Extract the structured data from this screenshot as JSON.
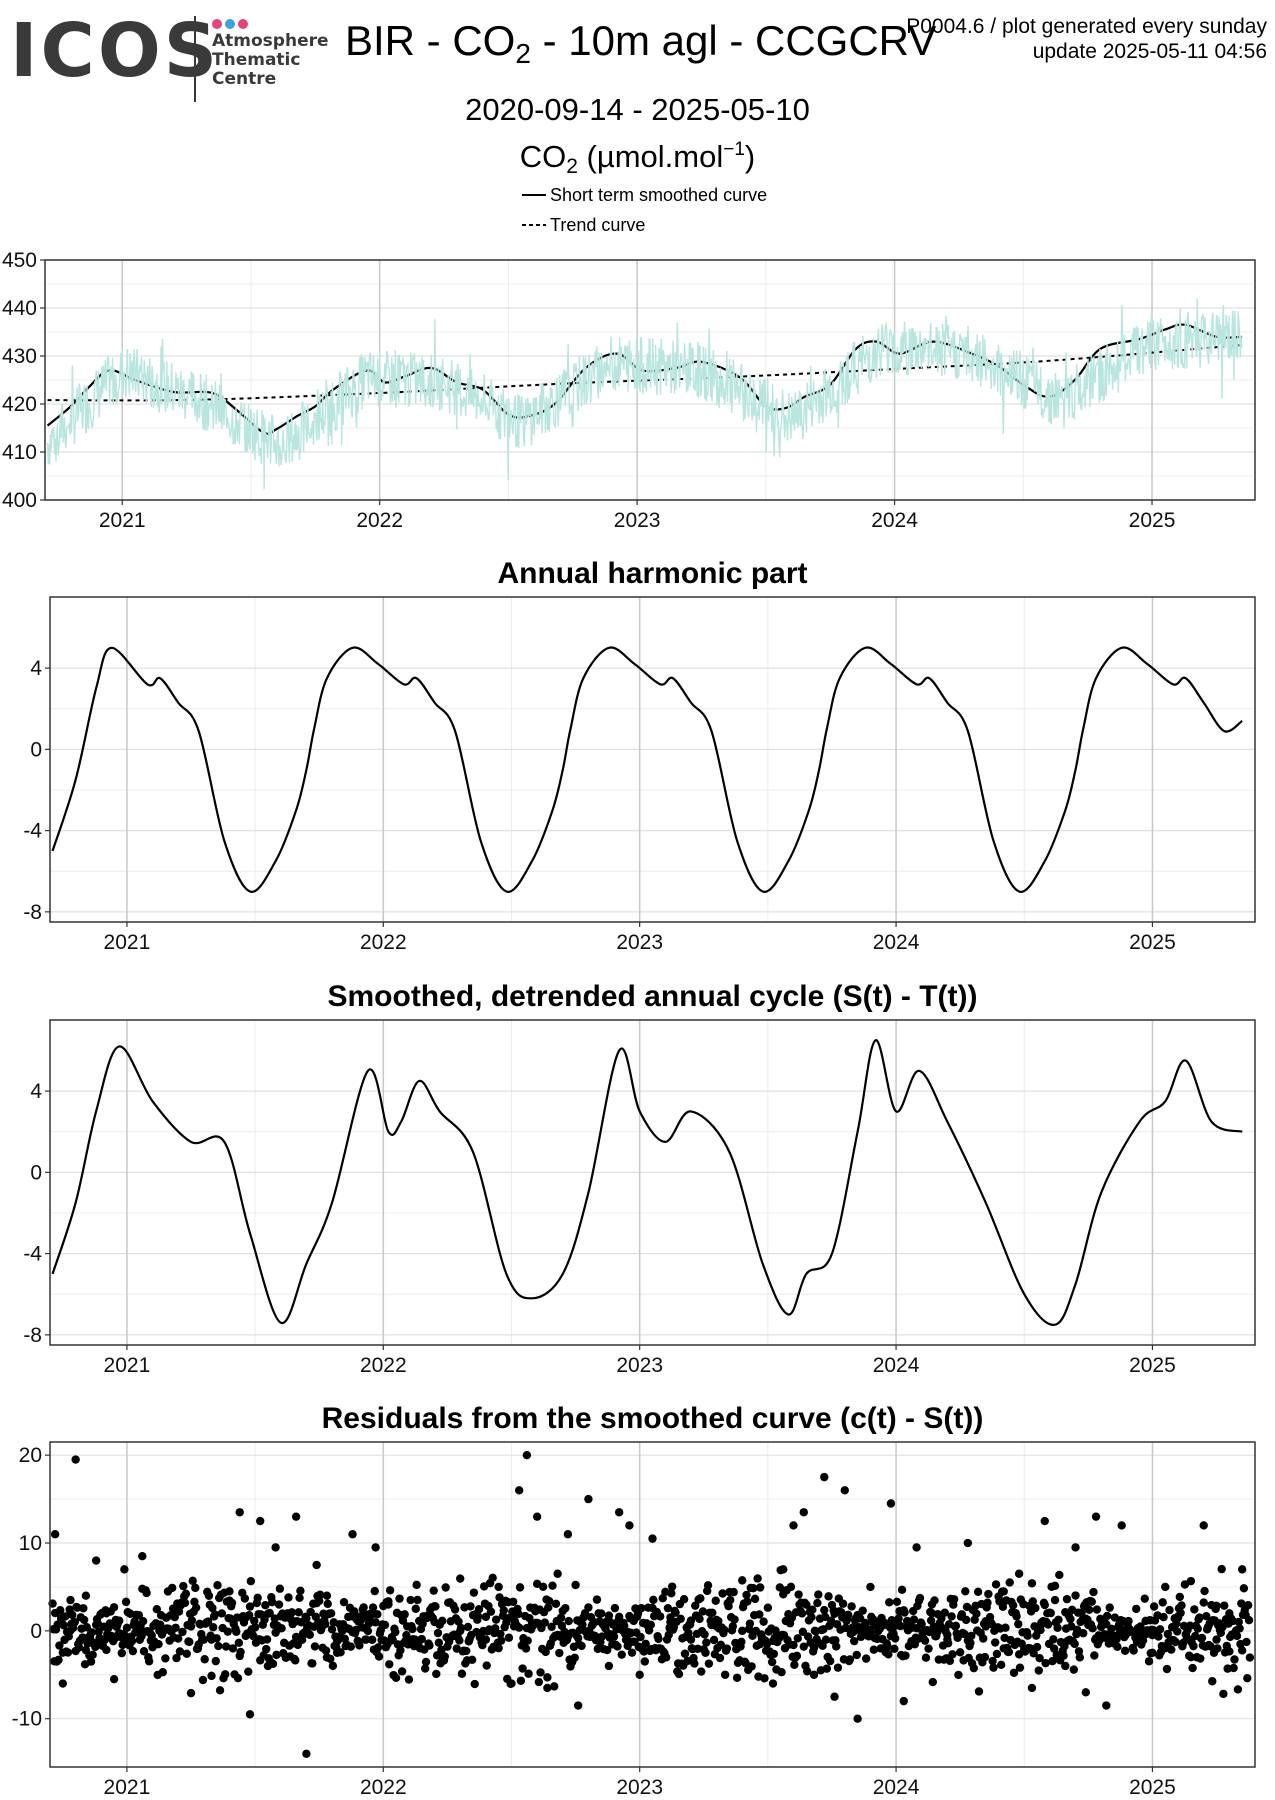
{
  "header": {
    "logo_word": "ICOS",
    "logo_sub": [
      "Atmosphere",
      "Thematic",
      "Centre"
    ],
    "logo_dot_colors": [
      "#e8417c",
      "#3aa3e8",
      "#e8417c"
    ],
    "title_prefix": "BIR - CO",
    "title_sub": "2",
    "title_suffix": " - 10m agl - CCGCRV",
    "meta_line1": "P0004.6 / plot generated every sunday",
    "meta_line2": "update  2025-05-11 04:56",
    "date_range": "2020-09-14 - 2025-05-10",
    "unit_prefix": "CO",
    "unit_sub": "2",
    "unit_middle": " (µmol.mol",
    "unit_sup": "−1",
    "unit_suffix": ")",
    "legend": [
      {
        "label": "Short term smoothed curve",
        "style": "solid"
      },
      {
        "label": "Trend curve",
        "style": "dashed"
      }
    ]
  },
  "colors": {
    "raw": "#b8e6df",
    "line": "#000000",
    "grid_major": "#c8c8c8",
    "grid_minor": "#ececec"
  },
  "chart_data": [
    {
      "type": "line",
      "title": "",
      "ylabel": "",
      "xlim": [
        2020.7,
        2025.4
      ],
      "ylim": [
        400,
        450
      ],
      "yticks": [
        400,
        410,
        420,
        430,
        440,
        450
      ],
      "xticks": [
        2021,
        2022,
        2023,
        2024,
        2025
      ],
      "xtick_labels": [
        "2021",
        "2022",
        "2023",
        "2024",
        "2025"
      ],
      "series": [
        {
          "name": "Short term smoothed curve",
          "style": "solid",
          "x": [
            2020.71,
            2020.8,
            2020.87,
            2020.95,
            2021.05,
            2021.2,
            2021.35,
            2021.45,
            2021.55,
            2021.6,
            2021.68,
            2021.75,
            2021.82,
            2021.95,
            2022.02,
            2022.1,
            2022.2,
            2022.3,
            2022.4,
            2022.5,
            2022.58,
            2022.68,
            2022.8,
            2022.92,
            2023.02,
            2023.15,
            2023.25,
            2023.4,
            2023.5,
            2023.58,
            2023.65,
            2023.75,
            2023.85,
            2023.93,
            2024.02,
            2024.15,
            2024.3,
            2024.4,
            2024.5,
            2024.6,
            2024.7,
            2024.8,
            2024.95,
            2025.05,
            2025.13,
            2025.25,
            2025.35
          ],
          "y": [
            415.5,
            419.5,
            423.5,
            427.0,
            425.0,
            422.5,
            422.3,
            418.5,
            414.0,
            414.8,
            417.5,
            419.5,
            423.0,
            427.0,
            424.5,
            425.8,
            427.5,
            424.5,
            423.0,
            417.8,
            417.5,
            420.0,
            427.5,
            430.5,
            427.0,
            427.5,
            428.8,
            425.5,
            419.5,
            419.2,
            421.5,
            424.0,
            431.5,
            433.0,
            430.5,
            433.0,
            430.5,
            428.0,
            424.0,
            421.5,
            425.0,
            431.5,
            433.5,
            435.5,
            436.5,
            434.0,
            434.0
          ]
        },
        {
          "name": "Trend curve",
          "style": "dashed",
          "x": [
            2020.71,
            2021.3,
            2022.0,
            2022.7,
            2023.4,
            2024.0,
            2024.6,
            2025.35
          ],
          "y": [
            420.8,
            420.9,
            422.3,
            424.2,
            425.7,
            427.3,
            429.0,
            432.3
          ]
        },
        {
          "name": "",
          "style": "raw",
          "kind": "daily_raw_band",
          "x": [
            2020.71,
            2021.0,
            2021.3,
            2021.62,
            2021.95,
            2022.25,
            2022.55,
            2022.9,
            2023.25,
            2023.6,
            2023.95,
            2024.3,
            2024.65,
            2025.0,
            2025.35
          ],
          "y": [
            412.0,
            427.0,
            421.0,
            411.0,
            425.5,
            424.5,
            416.0,
            428.5,
            427.0,
            416.5,
            432.0,
            430.5,
            420.5,
            433.0,
            433.5
          ],
          "spread": 6
        }
      ]
    },
    {
      "type": "line",
      "title": "Annual harmonic part",
      "xlim": [
        2020.7,
        2025.4
      ],
      "ylim": [
        -8.5,
        7.5
      ],
      "yticks": [
        -8,
        -4,
        0,
        4
      ],
      "ytick_labels": [
        "-8",
        "-4",
        "0",
        "4"
      ],
      "xticks": [
        2021,
        2022,
        2023,
        2024,
        2025
      ],
      "xtick_labels": [
        "2021",
        "2022",
        "2023",
        "2024",
        "2025"
      ],
      "cycle": {
        "phase": [
          0.0,
          0.05,
          0.12,
          0.2,
          0.3,
          0.4,
          0.5,
          0.58,
          0.62,
          0.65,
          0.7,
          0.8,
          0.9,
          1.0
        ],
        "value": [
          3.2,
          3.5,
          2.3,
          0.9,
          -4.5,
          -7.0,
          -5.5,
          -3.0,
          -1.0,
          1.0,
          3.5,
          5.0,
          4.2,
          3.2
        ],
        "period_start": 2021.08
      },
      "series": [
        {
          "name": "",
          "style": "solid",
          "x": [
            2020.71,
            2020.8,
            2020.88,
            2020.94,
            2021.08,
            2021.13,
            2021.2,
            2021.28,
            2021.38,
            2021.48,
            2021.58,
            2021.66,
            2021.7,
            2021.73,
            2021.78,
            2021.88,
            2021.98,
            2022.08,
            2022.13,
            2022.2,
            2022.28,
            2022.38,
            2022.48,
            2022.58,
            2022.66,
            2022.7,
            2022.73,
            2022.78,
            2022.88,
            2022.98,
            2023.08,
            2023.13,
            2023.2,
            2023.28,
            2023.38,
            2023.48,
            2023.58,
            2023.66,
            2023.7,
            2023.73,
            2023.78,
            2023.88,
            2023.98,
            2024.08,
            2024.13,
            2024.2,
            2024.28,
            2024.38,
            2024.48,
            2024.58,
            2024.66,
            2024.7,
            2024.73,
            2024.78,
            2024.88,
            2024.98,
            2025.08,
            2025.13,
            2025.2,
            2025.28,
            2025.35
          ],
          "y": [
            -5.0,
            -1.5,
            3.0,
            5.0,
            3.2,
            3.5,
            2.3,
            0.9,
            -4.5,
            -7.0,
            -5.5,
            -3.0,
            -1.0,
            1.0,
            3.5,
            5.0,
            4.2,
            3.2,
            3.5,
            2.3,
            0.9,
            -4.5,
            -7.0,
            -5.5,
            -3.0,
            -1.0,
            1.0,
            3.5,
            5.0,
            4.2,
            3.2,
            3.5,
            2.3,
            0.9,
            -4.5,
            -7.0,
            -5.5,
            -3.0,
            -1.0,
            1.0,
            3.5,
            5.0,
            4.2,
            3.2,
            3.5,
            2.3,
            0.9,
            -4.5,
            -7.0,
            -5.5,
            -3.0,
            -1.0,
            1.0,
            3.5,
            5.0,
            4.2,
            3.2,
            3.5,
            2.3,
            0.9,
            1.4
          ]
        }
      ]
    },
    {
      "type": "line",
      "title": "Smoothed, detrended annual cycle (S(t) - T(t))",
      "xlim": [
        2020.7,
        2025.4
      ],
      "ylim": [
        -8.5,
        7.5
      ],
      "yticks": [
        -8,
        -4,
        0,
        4
      ],
      "ytick_labels": [
        "-8",
        "-4",
        "0",
        "4"
      ],
      "xticks": [
        2021,
        2022,
        2023,
        2024,
        2025
      ],
      "xtick_labels": [
        "2021",
        "2022",
        "2023",
        "2024",
        "2025"
      ],
      "series": [
        {
          "name": "",
          "style": "solid",
          "x": [
            2020.71,
            2020.8,
            2020.88,
            2020.97,
            2021.1,
            2021.25,
            2021.38,
            2021.48,
            2021.6,
            2021.7,
            2021.8,
            2021.94,
            2022.02,
            2022.07,
            2022.14,
            2022.22,
            2022.35,
            2022.48,
            2022.58,
            2022.7,
            2022.8,
            2022.92,
            2023.0,
            2023.1,
            2023.2,
            2023.35,
            2023.48,
            2023.58,
            2023.65,
            2023.75,
            2023.85,
            2023.92,
            2024.0,
            2024.09,
            2024.2,
            2024.35,
            2024.5,
            2024.62,
            2024.7,
            2024.8,
            2024.95,
            2025.05,
            2025.13,
            2025.23,
            2025.35
          ],
          "y": [
            -5.0,
            -1.5,
            3.0,
            6.2,
            3.5,
            1.5,
            1.5,
            -3.0,
            -7.4,
            -4.5,
            -1.5,
            5.0,
            2.0,
            2.5,
            4.5,
            3.0,
            1.0,
            -5.0,
            -6.2,
            -5.0,
            -1.0,
            6.0,
            3.0,
            1.5,
            3.0,
            1.0,
            -4.5,
            -7.0,
            -5.0,
            -4.0,
            2.0,
            6.5,
            3.0,
            5.0,
            2.5,
            -1.5,
            -6.0,
            -7.5,
            -5.5,
            -1.0,
            2.5,
            3.5,
            5.5,
            2.5,
            2.0
          ]
        }
      ]
    },
    {
      "type": "scatter",
      "title": "Residuals from the smoothed curve (c(t) - S(t))",
      "xlim": [
        2020.7,
        2025.4
      ],
      "ylim": [
        -15.5,
        21.5
      ],
      "yticks": [
        -10,
        0,
        10,
        20
      ],
      "ytick_labels": [
        "-10",
        "0",
        "10",
        "20"
      ],
      "xticks": [
        2021,
        2022,
        2023,
        2024,
        2025
      ],
      "xtick_labels": [
        "2021",
        "2022",
        "2023",
        "2024",
        "2025"
      ],
      "series": [
        {
          "name": "",
          "style": "points",
          "x": [
            2020.72,
            2020.75,
            2020.78,
            2020.8,
            2020.84,
            2020.86,
            2020.88,
            2020.92,
            2020.95,
            2020.99,
            2021.03,
            2021.06,
            2021.12,
            2021.18,
            2021.25,
            2021.33,
            2021.4,
            2021.44,
            2021.48,
            2021.52,
            2021.55,
            2021.58,
            2021.62,
            2021.66,
            2021.7,
            2021.74,
            2021.78,
            2021.82,
            2021.88,
            2021.93,
            2021.97,
            2022.02,
            2022.1,
            2022.2,
            2022.3,
            2022.4,
            2022.45,
            2022.5,
            2022.53,
            2022.56,
            2022.6,
            2022.64,
            2022.68,
            2022.72,
            2022.76,
            2022.8,
            2022.84,
            2022.88,
            2022.92,
            2022.96,
            2023.0,
            2023.05,
            2023.12,
            2023.2,
            2023.3,
            2023.4,
            2023.47,
            2023.52,
            2023.56,
            2023.6,
            2023.64,
            2023.68,
            2023.72,
            2023.76,
            2023.8,
            2023.85,
            2023.9,
            2023.94,
            2023.98,
            2024.03,
            2024.08,
            2024.14,
            2024.2,
            2024.28,
            2024.35,
            2024.42,
            2024.48,
            2024.53,
            2024.58,
            2024.62,
            2024.66,
            2024.7,
            2024.74,
            2024.78,
            2024.82,
            2024.88,
            2024.94,
            2025.0,
            2025.05,
            2025.1,
            2025.15,
            2025.2,
            2025.25,
            2025.3,
            2025.35
          ],
          "y": [
            11.0,
            -6.0,
            3.5,
            19.5,
            4.0,
            -3.5,
            8.0,
            2.0,
            -5.5,
            7.0,
            1.0,
            8.5,
            -1.5,
            2.0,
            0.5,
            -1.0,
            4.5,
            13.5,
            -9.5,
            12.5,
            -4.0,
            9.5,
            -3.0,
            13.0,
            -14.0,
            7.5,
            4.0,
            -2.5,
            11.0,
            -1.0,
            9.5,
            3.0,
            -1.5,
            1.0,
            0.0,
            -1.0,
            5.0,
            -6.0,
            16.0,
            20.0,
            13.0,
            -6.5,
            6.5,
            11.0,
            -8.5,
            15.0,
            2.0,
            -4.0,
            13.5,
            12.0,
            -5.0,
            10.5,
            1.0,
            -1.0,
            0.5,
            0.0,
            -1.5,
            -6.0,
            7.0,
            12.0,
            13.5,
            -5.0,
            17.5,
            -7.5,
            16.0,
            -10.0,
            5.0,
            -2.0,
            14.5,
            -8.0,
            9.5,
            2.0,
            -1.0,
            10.0,
            0.5,
            -2.0,
            6.5,
            -6.5,
            12.5,
            3.5,
            -4.0,
            9.5,
            -7.0,
            13.0,
            -8.5,
            12.0,
            0.0,
            -2.5,
            5.0,
            1.5,
            -3.0,
            12.0,
            -1.0,
            2.0,
            7.0
          ]
        }
      ]
    }
  ]
}
